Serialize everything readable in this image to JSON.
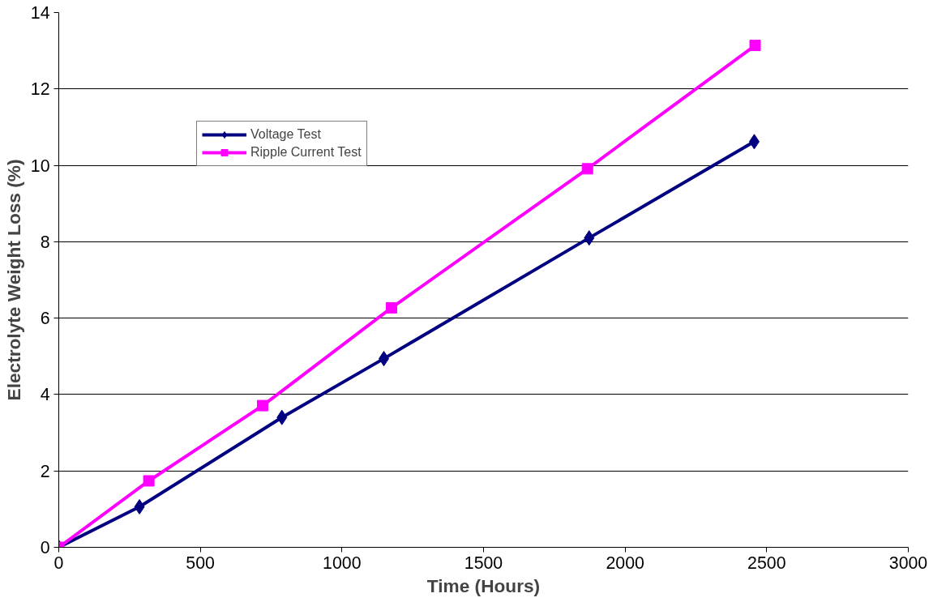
{
  "chart_data": {
    "type": "line",
    "xlabel": "Time (Hours)",
    "ylabel": "Electrolyte Weight Loss (%)",
    "xlim": [
      0,
      3000
    ],
    "xticks": [
      0,
      500,
      1000,
      1500,
      2000,
      2500,
      3000
    ],
    "ylim": [
      0,
      14
    ],
    "yticks": [
      0,
      2,
      4,
      6,
      8,
      10,
      12,
      14
    ],
    "grid": "y",
    "legend": "top left",
    "line_style": "solid",
    "series": [
      {
        "name": "Voltage Test",
        "color": "#000080",
        "marker": "diamond",
        "x": [
          0,
          285,
          788,
          1148,
          1873,
          2456
        ],
        "values": [
          0,
          1.06,
          3.4,
          4.94,
          8.1,
          10.62
        ]
      },
      {
        "name": "Ripple Current Test",
        "color": "#ff00ff",
        "marker": "square",
        "x": [
          0,
          318,
          720,
          1175,
          1867,
          2459
        ],
        "values": [
          0,
          1.74,
          3.71,
          6.27,
          9.91,
          13.14
        ]
      }
    ]
  }
}
